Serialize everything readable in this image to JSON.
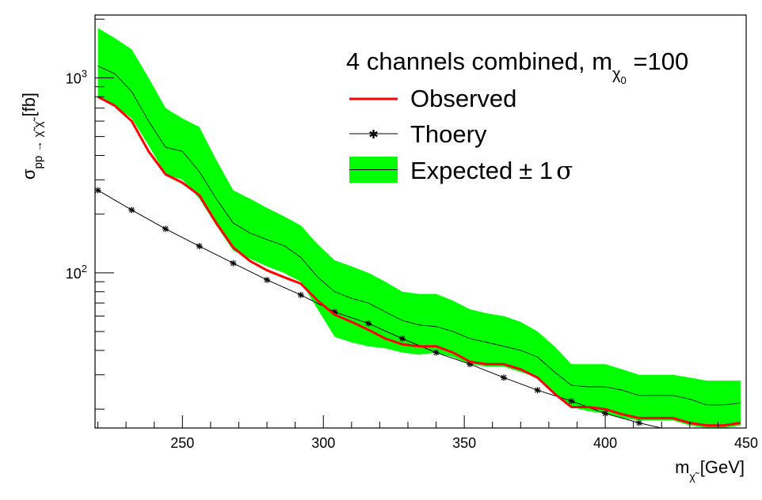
{
  "chart_data": {
    "type": "line",
    "title": "",
    "xlabel": "m_χ̃ [GeV]",
    "xlabel_parts": {
      "main": "m",
      "sub": "χ̃",
      "unit": "[GeV]"
    },
    "ylabel": "σ_pp→χ̃χ̃ [fb]",
    "ylabel_parts": {
      "main": "σ",
      "sub": "pp → χ̃ χ̃",
      "unit": "[fb]"
    },
    "xlim": [
      219,
      450
    ],
    "ylim": [
      16,
      2100
    ],
    "y_scale": "log",
    "x_ticks": [
      250,
      300,
      350,
      400,
      450
    ],
    "x_tick_labels": [
      "250",
      "300",
      "350",
      "400",
      "450"
    ],
    "y_tick_labels": [
      {
        "value": 100,
        "base": "10",
        "exp": "2"
      },
      {
        "value": 1000,
        "base": "10",
        "exp": "3"
      }
    ],
    "grid": false,
    "legend": {
      "placement": "top-right",
      "header_main": "4 channels combined, m",
      "header_sub": "χ",
      "header_subsub": "0",
      "header_tail": " =100",
      "entries": {
        "observed": "Observed",
        "theory": "Thoery",
        "expected": "Expected",
        "expected_suffix": "± 1",
        "expected_sigma": "σ"
      }
    },
    "colors": {
      "observed": "#ff0000",
      "theory": "#000000",
      "band": "#00ff00",
      "expected": "#000000",
      "frame": "#000000"
    },
    "series": [
      {
        "name": "Observed",
        "x": [
          220,
          226,
          232,
          238,
          244,
          250,
          256,
          262,
          268,
          274,
          280,
          286,
          292,
          298,
          304,
          310,
          316,
          322,
          328,
          334,
          340,
          346,
          352,
          358,
          364,
          370,
          376,
          382,
          388,
          394,
          400,
          406,
          412,
          418,
          424,
          430,
          436,
          442,
          448
        ],
        "y": [
          800,
          720,
          600,
          420,
          320,
          290,
          250,
          180,
          135,
          115,
          103,
          95,
          88,
          72,
          61,
          56,
          51,
          46,
          43,
          42,
          42,
          39,
          35,
          34,
          34,
          32,
          29,
          24,
          20.5,
          20.5,
          20,
          18.8,
          18,
          18,
          18,
          17,
          16.5,
          16.5,
          17
        ]
      },
      {
        "name": "Thoery",
        "x": [
          220,
          232,
          244,
          256,
          268,
          280,
          292,
          304,
          316,
          328,
          340,
          352,
          364,
          376,
          388,
          400,
          412,
          424,
          436
        ],
        "y": [
          265,
          210,
          168,
          137,
          112,
          92,
          77,
          63,
          55,
          46,
          39,
          34,
          29,
          25,
          22,
          19,
          17,
          15.5,
          14
        ]
      },
      {
        "name": "Expected",
        "x": [
          220,
          226,
          232,
          238,
          244,
          250,
          256,
          262,
          268,
          274,
          280,
          286,
          292,
          298,
          304,
          310,
          316,
          322,
          328,
          334,
          340,
          346,
          352,
          358,
          364,
          370,
          376,
          382,
          388,
          394,
          400,
          406,
          412,
          418,
          424,
          430,
          436,
          442,
          448
        ],
        "y": [
          1150,
          1050,
          850,
          600,
          440,
          420,
          330,
          240,
          180,
          160,
          148,
          138,
          120,
          95,
          80,
          74,
          70,
          63,
          57,
          54,
          53,
          50,
          46,
          44,
          42,
          40,
          37,
          31,
          26.5,
          26,
          26,
          25,
          23.5,
          23.5,
          23.5,
          22.5,
          21,
          21,
          21.5
        ]
      },
      {
        "name": "Expected ± 1σ",
        "x": [
          220,
          226,
          232,
          238,
          244,
          250,
          256,
          262,
          268,
          274,
          280,
          286,
          292,
          298,
          304,
          310,
          316,
          322,
          328,
          334,
          340,
          346,
          352,
          358,
          364,
          370,
          376,
          382,
          388,
          394,
          400,
          406,
          412,
          418,
          424,
          430,
          436,
          442,
          448
        ],
        "upper": [
          1800,
          1600,
          1400,
          1000,
          700,
          620,
          560,
          380,
          265,
          240,
          215,
          195,
          175,
          140,
          116,
          108,
          100,
          90,
          80,
          78,
          78,
          72,
          65,
          62,
          60,
          56,
          50,
          42,
          34,
          34,
          34,
          32,
          30,
          30,
          30,
          29,
          28,
          28,
          28
        ],
        "lower": [
          800,
          720,
          620,
          450,
          320,
          300,
          240,
          175,
          130,
          118,
          108,
          100,
          90,
          65,
          47,
          44,
          42,
          41,
          39,
          38,
          39,
          37,
          34,
          33,
          33,
          31,
          29,
          24,
          20.5,
          19.5,
          19,
          18,
          17.5,
          17.5,
          17.5,
          16.5,
          16,
          16,
          16.5
        ]
      }
    ]
  }
}
